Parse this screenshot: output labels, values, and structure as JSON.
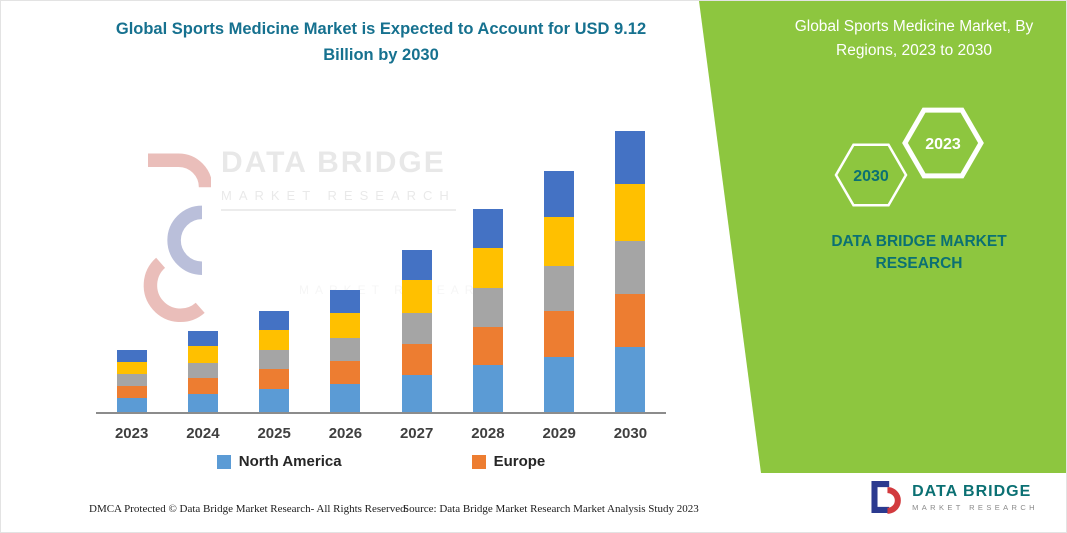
{
  "header": {
    "chart_title": "Global Sports Medicine Market is Expected to Account for USD 9.12 Billion by 2030"
  },
  "right_panel": {
    "title": "Global Sports Medicine Market, By Regions, 2023 to 2030",
    "hexagon_year_top": "2023",
    "hexagon_year_bottom": "2030",
    "brand_text": "DATA BRIDGE MARKET RESEARCH",
    "accent_green": "#8DC63F",
    "teal": "#0B7073"
  },
  "chart_data": {
    "type": "bar",
    "stacked": true,
    "title": "Global Sports Medicine Market is Expected to Account for USD 9.12 Billion by 2030",
    "unit": "USD Billion",
    "categories": [
      "2023",
      "2024",
      "2025",
      "2026",
      "2027",
      "2028",
      "2029",
      "2030"
    ],
    "series": [
      {
        "name": "North America",
        "color": "#5B9BD5",
        "values": [
          0.46,
          0.6,
          0.76,
          0.91,
          1.21,
          1.51,
          1.79,
          2.1
        ]
      },
      {
        "name": "Europe",
        "color": "#ED7D31",
        "values": [
          0.38,
          0.5,
          0.63,
          0.75,
          1.0,
          1.25,
          1.48,
          1.73
        ]
      },
      {
        "name": "Unlabeled (gray)",
        "color": "#A5A5A5",
        "values": [
          0.38,
          0.5,
          0.62,
          0.75,
          1.0,
          1.25,
          1.48,
          1.73
        ]
      },
      {
        "name": "Unlabeled (yellow)",
        "color": "#FFC000",
        "values": [
          0.4,
          0.53,
          0.66,
          0.79,
          1.06,
          1.32,
          1.57,
          1.83
        ]
      },
      {
        "name": "Unlabeled (dark blue)",
        "color": "#4472C4",
        "values": [
          0.39,
          0.5,
          0.62,
          0.75,
          1.0,
          1.25,
          1.48,
          1.73
        ]
      }
    ],
    "totals": [
      2.01,
      2.63,
      3.29,
      3.95,
      5.27,
      6.58,
      7.8,
      9.12
    ],
    "ylim": [
      0,
      9.5
    ],
    "grid": false,
    "legend_position": "bottom",
    "legend_visible_entries": [
      "North America",
      "Europe"
    ]
  },
  "legend": {
    "items": [
      {
        "label": "North America",
        "color": "#5B9BD5"
      },
      {
        "label": "Europe",
        "color": "#ED7D31"
      }
    ]
  },
  "watermark": {
    "line1": "DATA BRIDGE",
    "line2": "MARKET RESEARCH"
  },
  "footer": {
    "dmca": "DMCA Protected © Data Bridge Market Research-  All Rights Reserved.",
    "source": "Source: Data Bridge Market Research  Market Analysis Study 2023"
  },
  "logo": {
    "name": "DATA BRIDGE",
    "subtitle": "MARKET RESEARCH"
  }
}
